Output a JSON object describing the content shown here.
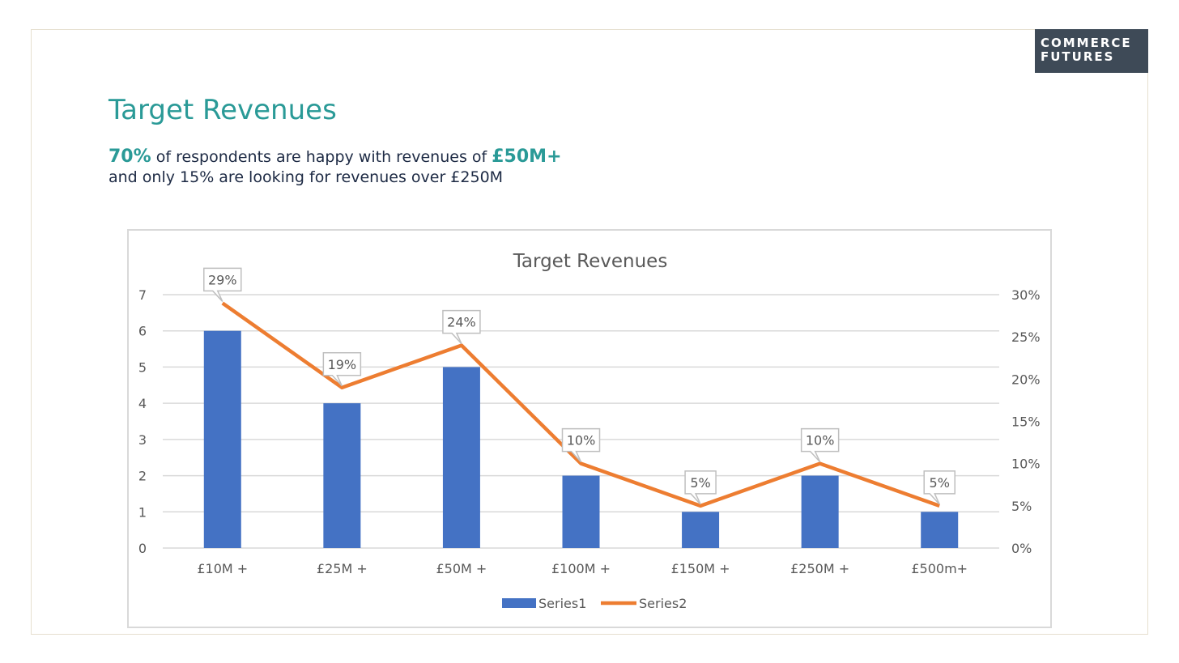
{
  "logo": {
    "line1": "COMMERCE",
    "line2": "FUTURES"
  },
  "slide": {
    "title": "Target Revenues",
    "subtitle_line1_highlight1": "70%",
    "subtitle_line1_text": " of respondents are happy with revenues of ",
    "subtitle_line1_highlight2": "£50M+",
    "subtitle_line2": "and only 15% are looking for revenues over  £250M"
  },
  "colors": {
    "accent": "#2a9a97",
    "series1": "#4472c4",
    "series2": "#ed7d31",
    "logo_bg": "#3e4a57"
  },
  "chart_data": {
    "type": "bar",
    "title": "Target Revenues",
    "categories": [
      "£10M +",
      "£25M +",
      "£50M +",
      "£100M +",
      "£150M +",
      "£250M +",
      "£500m+"
    ],
    "series": [
      {
        "name": "Series1",
        "type": "bar",
        "axis": "left",
        "values": [
          6,
          4,
          5,
          2,
          1,
          2,
          1
        ]
      },
      {
        "name": "Series2",
        "type": "line",
        "axis": "right",
        "values": [
          0.29,
          0.19,
          0.24,
          0.1,
          0.05,
          0.1,
          0.05
        ],
        "data_labels": [
          "29%",
          "19%",
          "24%",
          "10%",
          "5%",
          "10%",
          "5%"
        ]
      }
    ],
    "y_left": {
      "min": 0,
      "max": 7,
      "ticks": [
        "0",
        "1",
        "2",
        "3",
        "4",
        "5",
        "6",
        "7"
      ]
    },
    "y_right": {
      "min": 0,
      "max": 0.3,
      "ticks": [
        "0%",
        "5%",
        "10%",
        "15%",
        "20%",
        "25%",
        "30%"
      ]
    },
    "grid": true,
    "legend": "bottom"
  }
}
